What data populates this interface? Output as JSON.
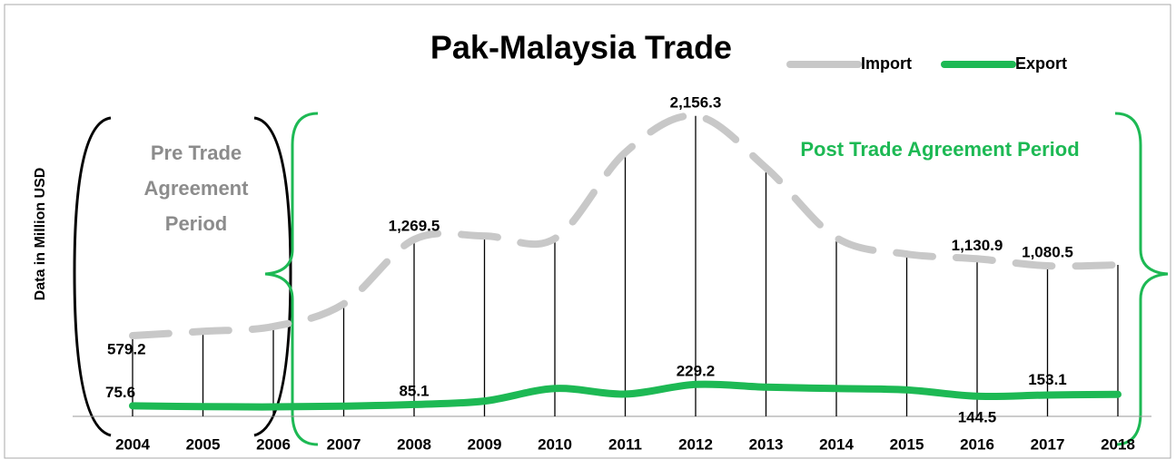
{
  "chart_data": {
    "type": "line",
    "title": "Pak-Malaysia Trade",
    "y_label": "Data in Million USD",
    "annotations": [
      "Pre Trade Agreement Period",
      "Post Trade Agreement Period"
    ],
    "categories": [
      "2004",
      "2005",
      "2006",
      "2007",
      "2008",
      "2009",
      "2010",
      "2011",
      "2012",
      "2013",
      "2014",
      "2015",
      "2016",
      "2017",
      "2018"
    ],
    "series": [
      {
        "name": "Import",
        "color": "#c8c8c8",
        "dashed": true,
        "values": [
          579.2,
          610,
          645,
          807,
          1269.5,
          1295,
          1276,
          1894,
          2156.3,
          1784,
          1282,
          1165,
          1130.9,
          1080.5,
          1087
        ],
        "value_labels": [
          "579.2",
          null,
          null,
          null,
          "1,269.5",
          null,
          null,
          null,
          "2,156.3",
          null,
          null,
          null,
          "1,130.9",
          "1,080.5",
          null
        ]
      },
      {
        "name": "Export",
        "color": "#1db954",
        "values": [
          75.6,
          70,
          68,
          73,
          85.1,
          110,
          200,
          160,
          229.2,
          210,
          200,
          190,
          144.5,
          153.1,
          158
        ],
        "value_labels": [
          "75.6",
          null,
          null,
          null,
          "85.1",
          null,
          null,
          null,
          "229.2",
          null,
          null,
          null,
          "144.5",
          "153.1",
          null
        ]
      }
    ],
    "ylim": [
      0,
      2500
    ],
    "drop_lines": true
  }
}
